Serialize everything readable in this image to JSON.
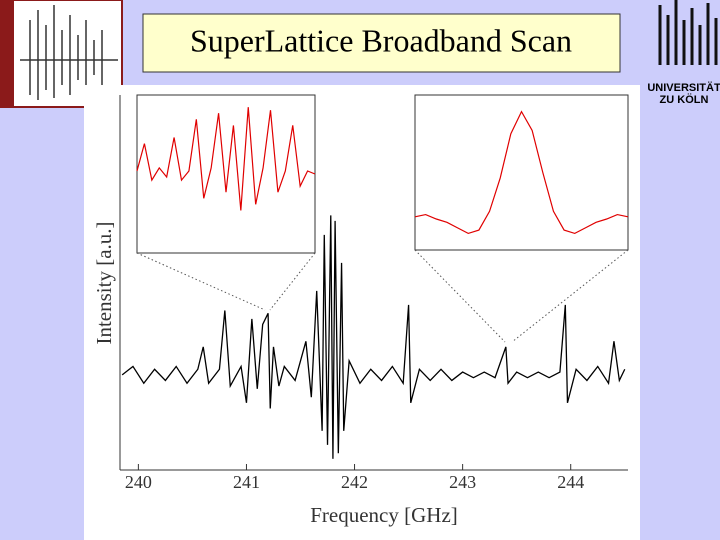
{
  "title": "SuperLattice Broadband Scan",
  "logo": {
    "line1": "UNIVERSITÄT",
    "line2": "ZU KÖLN"
  },
  "chart_data": [
    {
      "type": "line",
      "color": "#000000",
      "xlabel": "Frequency [GHz]",
      "ylabel": "Intensity [a.u.]",
      "xlim": [
        239.83,
        244.53
      ],
      "ylim": [
        -0.34,
        1
      ],
      "xticks": [
        240,
        241,
        242,
        243,
        244
      ],
      "x": [
        239.85,
        239.95,
        240.05,
        240.15,
        240.25,
        240.35,
        240.45,
        240.55,
        240.6,
        240.65,
        240.75,
        240.8,
        240.85,
        240.95,
        241.0,
        241.05,
        241.1,
        241.15,
        241.2,
        241.22,
        241.25,
        241.3,
        241.35,
        241.45,
        241.55,
        241.6,
        241.65,
        241.7,
        241.72,
        241.75,
        241.78,
        241.8,
        241.82,
        241.85,
        241.88,
        241.9,
        241.95,
        242.05,
        242.15,
        242.25,
        242.35,
        242.45,
        242.5,
        242.52,
        242.6,
        242.7,
        242.8,
        242.9,
        243.0,
        243.1,
        243.2,
        243.3,
        243.4,
        243.42,
        243.5,
        243.6,
        243.7,
        243.8,
        243.9,
        243.95,
        243.97,
        244.05,
        244.15,
        244.25,
        244.35,
        244.4,
        244.45,
        244.5
      ],
      "values": [
        0.0,
        0.03,
        -0.03,
        0.02,
        -0.02,
        0.03,
        -0.03,
        0.02,
        0.1,
        -0.03,
        0.02,
        0.23,
        -0.04,
        0.03,
        -0.1,
        0.2,
        -0.05,
        0.18,
        0.22,
        -0.12,
        0.1,
        -0.04,
        0.03,
        -0.02,
        0.12,
        -0.08,
        0.3,
        -0.2,
        0.5,
        -0.25,
        0.57,
        -0.3,
        0.55,
        -0.28,
        0.4,
        -0.2,
        0.05,
        -0.03,
        0.02,
        -0.02,
        0.03,
        -0.03,
        0.25,
        -0.1,
        0.02,
        -0.02,
        0.02,
        -0.02,
        0.01,
        -0.01,
        0.01,
        -0.01,
        0.1,
        -0.03,
        0.01,
        -0.01,
        0.01,
        -0.01,
        0.01,
        0.25,
        -0.1,
        0.02,
        -0.02,
        0.03,
        -0.03,
        0.12,
        -0.02,
        0.02
      ]
    },
    {
      "type": "line",
      "color": "#e00000",
      "xlim": [
        241.15,
        241.27
      ],
      "ylim": [
        -1.3,
        1.3
      ],
      "x": [
        241.15,
        241.155,
        241.16,
        241.165,
        241.17,
        241.175,
        241.18,
        241.185,
        241.19,
        241.195,
        241.2,
        241.205,
        241.21,
        241.215,
        241.22,
        241.225,
        241.23,
        241.235,
        241.24,
        241.245,
        241.25,
        241.255,
        241.26,
        241.265,
        241.27
      ],
      "values": [
        0.05,
        0.5,
        -0.1,
        0.1,
        -0.05,
        0.6,
        -0.1,
        0.05,
        0.9,
        -0.4,
        0.1,
        1.0,
        -0.3,
        0.8,
        -0.6,
        1.1,
        -0.5,
        0.1,
        1.05,
        -0.3,
        0.05,
        0.8,
        -0.2,
        0.05,
        0.0
      ]
    },
    {
      "type": "line",
      "color": "#e00000",
      "xlim": [
        243.35,
        243.45
      ],
      "ylim": [
        -0.3,
        1.1
      ],
      "x": [
        243.35,
        243.355,
        243.36,
        243.365,
        243.37,
        243.375,
        243.38,
        243.385,
        243.39,
        243.395,
        243.4,
        243.405,
        243.41,
        243.415,
        243.42,
        243.425,
        243.43,
        243.435,
        243.44,
        243.445,
        243.45
      ],
      "values": [
        0.0,
        0.02,
        -0.02,
        -0.05,
        -0.1,
        -0.15,
        -0.12,
        0.05,
        0.35,
        0.75,
        0.95,
        0.78,
        0.4,
        0.05,
        -0.12,
        -0.15,
        -0.1,
        -0.05,
        -0.02,
        0.02,
        0.0
      ]
    }
  ]
}
